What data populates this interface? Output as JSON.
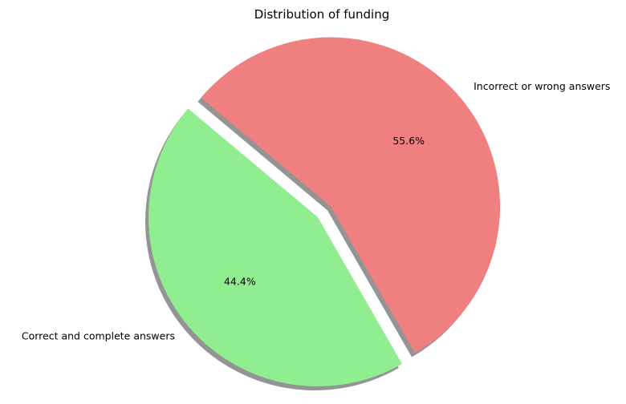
{
  "chart_data": {
    "type": "pie",
    "title": "Distribution of funding",
    "slices": [
      {
        "label": "Correct and complete answers",
        "value": 44.4,
        "pct_label": "44.4%",
        "color": "#90EE90",
        "exploded": false
      },
      {
        "label": "Incorrect or wrong answers",
        "value": 55.6,
        "pct_label": "55.6%",
        "color": "#F08080",
        "exploded": true
      }
    ],
    "shadow": true,
    "legend": "none"
  }
}
